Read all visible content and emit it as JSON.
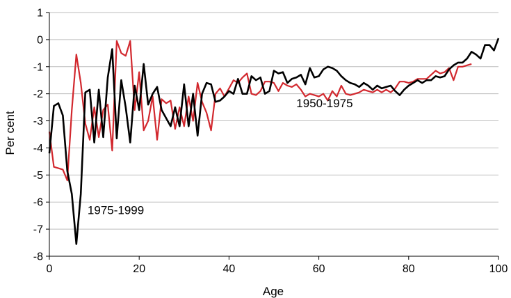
{
  "chart_data": {
    "type": "line",
    "title": "",
    "xlabel": "Age",
    "ylabel": "Per cent",
    "xlim": [
      0,
      100
    ],
    "ylim": [
      -8,
      1
    ],
    "xticks": [
      0,
      20,
      40,
      60,
      80,
      100
    ],
    "yticks": [
      1,
      0,
      -1,
      -2,
      -3,
      -4,
      -5,
      -6,
      -7,
      -8
    ],
    "grid": "horizontal",
    "legend": "none",
    "annotations": [
      {
        "text": "1950-1975",
        "x": 55,
        "y": -2.5
      },
      {
        "text": "1975-1999",
        "x": 8.5,
        "y": -6.45
      }
    ],
    "series": [
      {
        "name": "1975-1999",
        "color": "#d2282e",
        "x": [
          0,
          1,
          2,
          3,
          4,
          5,
          6,
          7,
          8,
          9,
          10,
          11,
          12,
          13,
          14,
          15,
          16,
          17,
          18,
          19,
          20,
          21,
          22,
          23,
          24,
          25,
          26,
          27,
          28,
          29,
          30,
          31,
          32,
          33,
          34,
          35,
          36,
          37,
          38,
          39,
          40,
          41,
          42,
          43,
          44,
          45,
          46,
          47,
          48,
          49,
          50,
          51,
          52,
          53,
          54,
          55,
          56,
          57,
          58,
          59,
          60,
          61,
          62,
          63,
          64,
          65,
          66,
          67,
          68,
          69,
          70,
          71,
          72,
          73,
          74,
          75,
          76,
          77,
          78,
          79,
          80,
          81,
          82,
          83,
          84,
          85,
          86,
          87,
          88,
          89,
          90,
          91,
          92,
          93,
          94
        ],
        "y": [
          -3.4,
          -4.7,
          -4.75,
          -4.8,
          -5.2,
          -2.6,
          -0.55,
          -1.6,
          -3.1,
          -3.7,
          -2.5,
          -3.6,
          -2.6,
          -2.4,
          -4.1,
          -0.05,
          -0.5,
          -0.6,
          -0.05,
          -2.6,
          -1.2,
          -3.35,
          -3.0,
          -2.1,
          -3.7,
          -2.2,
          -2.35,
          -2.25,
          -3.3,
          -2.5,
          -3.2,
          -2.1,
          -3.0,
          -1.6,
          -2.3,
          -2.7,
          -3.35,
          -2.0,
          -1.8,
          -2.1,
          -1.8,
          -1.5,
          -1.6,
          -1.4,
          -1.25,
          -2.0,
          -2.05,
          -1.9,
          -1.55,
          -1.55,
          -1.6,
          -1.9,
          -1.6,
          -1.7,
          -1.75,
          -1.65,
          -1.85,
          -2.1,
          -2.0,
          -2.05,
          -2.1,
          -2.0,
          -2.25,
          -1.9,
          -2.1,
          -1.7,
          -2.0,
          -2.05,
          -2.0,
          -1.95,
          -1.85,
          -1.9,
          -1.95,
          -1.85,
          -1.95,
          -1.85,
          -1.95,
          -1.8,
          -1.55,
          -1.55,
          -1.6,
          -1.55,
          -1.45,
          -1.45,
          -1.45,
          -1.3,
          -1.15,
          -1.25,
          -1.2,
          -1.05,
          -1.5,
          -1.0,
          -1.0,
          -0.95,
          -0.9
        ]
      },
      {
        "name": "1950-1975",
        "color": "#000000",
        "x": [
          0,
          1,
          2,
          3,
          4,
          5,
          6,
          7,
          8,
          9,
          10,
          11,
          12,
          13,
          14,
          15,
          16,
          17,
          18,
          19,
          20,
          21,
          22,
          23,
          24,
          25,
          26,
          27,
          28,
          29,
          30,
          31,
          32,
          33,
          34,
          35,
          36,
          37,
          38,
          39,
          40,
          41,
          42,
          43,
          44,
          45,
          46,
          47,
          48,
          49,
          50,
          51,
          52,
          53,
          54,
          55,
          56,
          57,
          58,
          59,
          60,
          61,
          62,
          63,
          64,
          65,
          66,
          67,
          68,
          69,
          70,
          71,
          72,
          73,
          74,
          75,
          76,
          77,
          78,
          79,
          80,
          81,
          82,
          83,
          84,
          85,
          86,
          87,
          88,
          89,
          90,
          91,
          92,
          93,
          94,
          95,
          96,
          97,
          98,
          99,
          100
        ],
        "y": [
          -4.2,
          -2.45,
          -2.35,
          -2.8,
          -4.85,
          -5.7,
          -7.55,
          -5.7,
          -1.95,
          -1.85,
          -3.8,
          -1.85,
          -3.6,
          -1.4,
          -0.35,
          -3.65,
          -1.5,
          -2.5,
          -3.8,
          -1.7,
          -2.6,
          -0.9,
          -2.4,
          -2.0,
          -1.75,
          -2.6,
          -2.9,
          -3.2,
          -2.5,
          -3.2,
          -1.65,
          -3.2,
          -2.0,
          -3.55,
          -2.0,
          -1.6,
          -1.65,
          -2.3,
          -2.25,
          -2.1,
          -1.9,
          -2.0,
          -1.45,
          -2.0,
          -2.0,
          -1.35,
          -1.5,
          -1.4,
          -2.0,
          -1.9,
          -1.15,
          -1.25,
          -1.2,
          -1.6,
          -1.45,
          -1.4,
          -1.3,
          -1.65,
          -1.05,
          -1.4,
          -1.35,
          -1.1,
          -1.0,
          -1.05,
          -1.15,
          -1.35,
          -1.5,
          -1.6,
          -1.65,
          -1.75,
          -1.6,
          -1.7,
          -1.85,
          -1.7,
          -1.8,
          -1.75,
          -1.7,
          -1.9,
          -2.05,
          -1.85,
          -1.7,
          -1.6,
          -1.5,
          -1.6,
          -1.5,
          -1.5,
          -1.35,
          -1.4,
          -1.35,
          -1.1,
          -0.95,
          -0.85,
          -0.85,
          -0.7,
          -0.45,
          -0.55,
          -0.7,
          -0.2,
          -0.2,
          -0.4,
          0.05
        ]
      }
    ]
  }
}
